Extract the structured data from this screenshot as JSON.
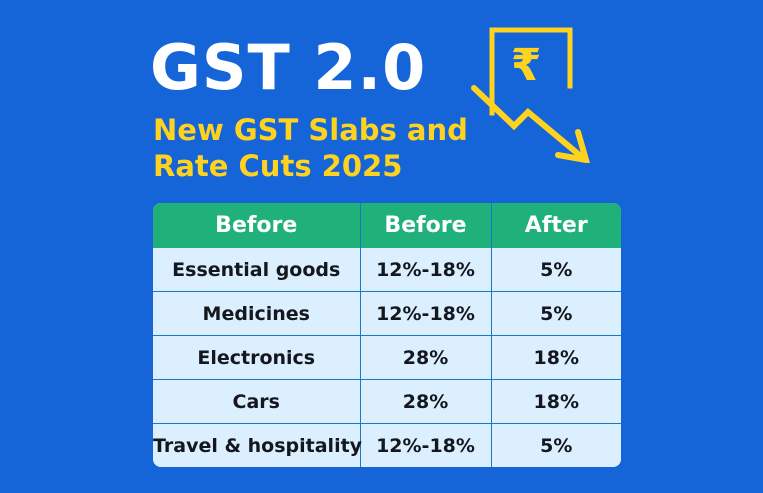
{
  "title": "GST 2.0",
  "subtitle_line1": "New GST Slabs and",
  "subtitle_line2": "Rate Cuts 2025",
  "graphic": {
    "symbol": "₹",
    "icon": "rupee-document-down-arrow-icon"
  },
  "colors": {
    "background": "#1565d8",
    "accent_yellow": "#ffd21f",
    "header_green": "#20b17a",
    "row_bg": "#dcefff",
    "grid_line": "#1a78c8"
  },
  "table": {
    "headers": [
      "Before",
      "Before",
      "After"
    ],
    "rows": [
      {
        "item": "Essential goods",
        "before": "12%-18%",
        "after": "5%"
      },
      {
        "item": "Medicines",
        "before": "12%-18%",
        "after": "5%"
      },
      {
        "item": "Electronics",
        "before": "28%",
        "after": "18%"
      },
      {
        "item": "Cars",
        "before": "28%",
        "after": "18%"
      },
      {
        "item": "Travel & hospitality",
        "before": "12%-18%",
        "after": "5%"
      }
    ]
  }
}
